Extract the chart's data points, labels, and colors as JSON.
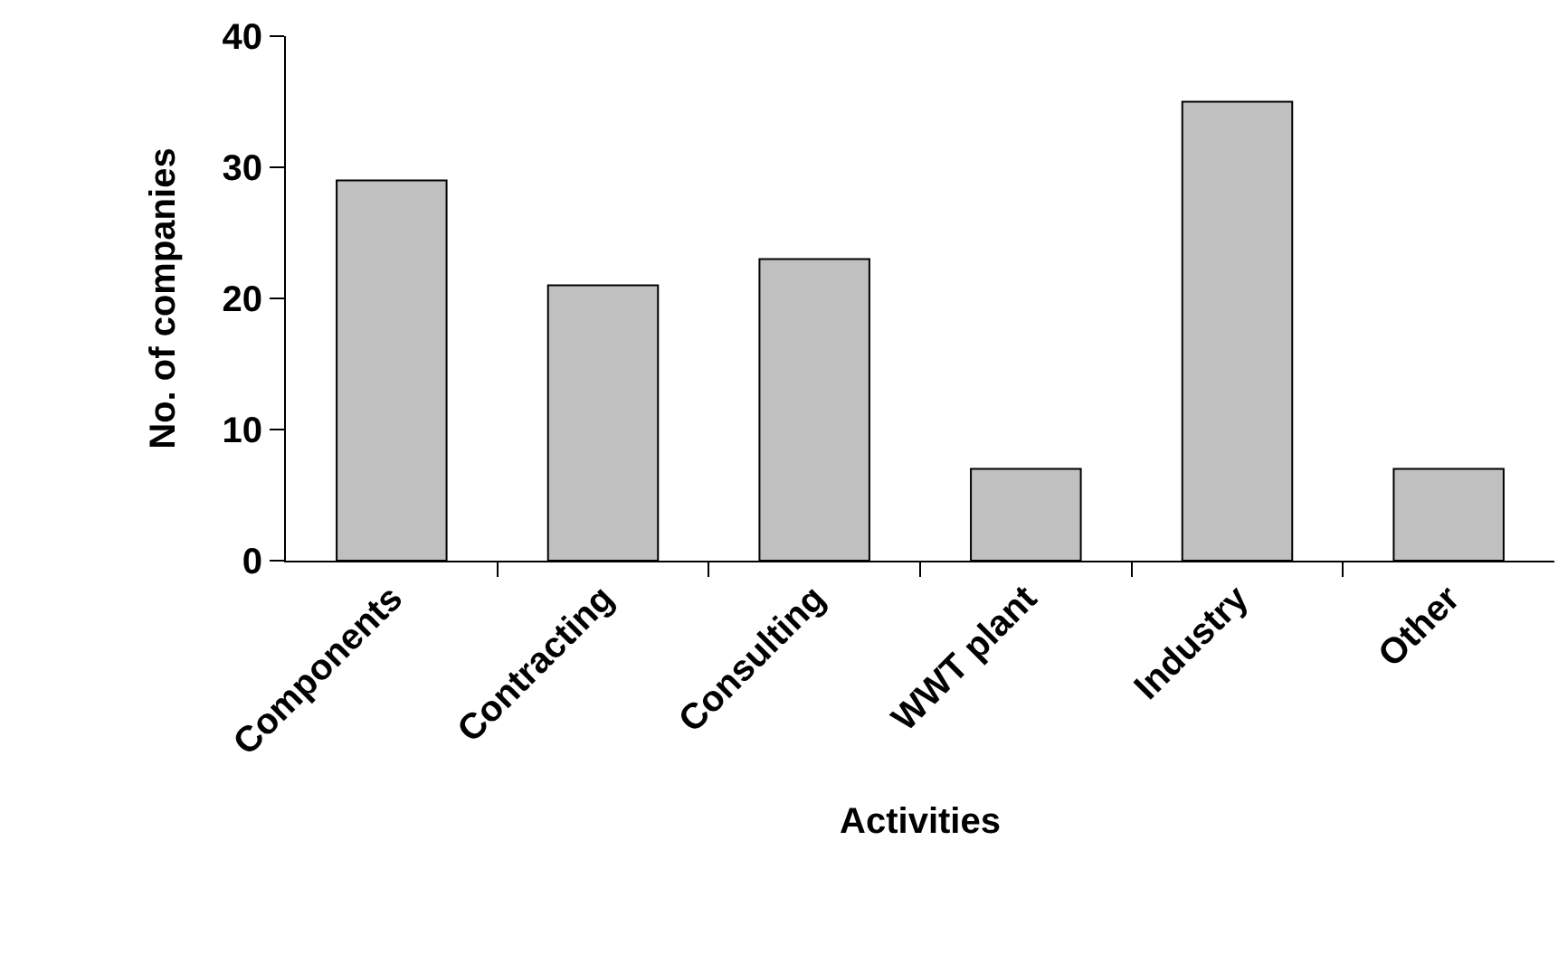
{
  "chart_data": {
    "type": "bar",
    "xlabel": "Activities",
    "ylabel": "No. of companies",
    "categories": [
      "Components",
      "Contracting",
      "Consulting",
      "WWT plant",
      "Industry",
      "Other"
    ],
    "values": [
      29,
      21,
      23,
      7,
      35,
      7
    ],
    "color": "#c0c0c0",
    "ylim": [
      0,
      40
    ],
    "yticks": [
      0,
      10,
      20,
      30,
      40
    ]
  }
}
